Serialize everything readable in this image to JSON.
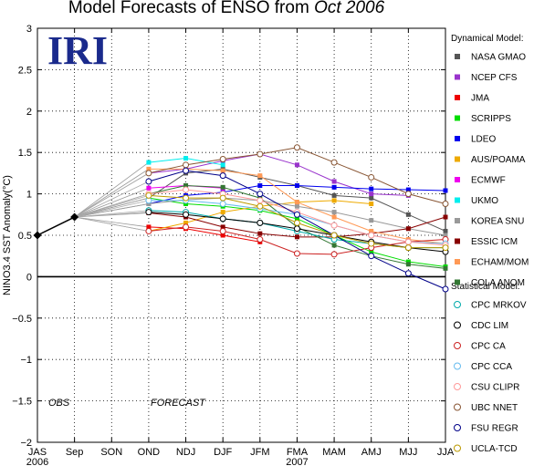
{
  "chart_data": {
    "type": "line",
    "title_prefix": "Model Forecasts of ENSO from",
    "title_date": "Oct 2006",
    "logo": "IRI",
    "ylabel": "NINO3.4 SST Anomaly(°C)",
    "ylim": [
      -2,
      3
    ],
    "yticks": [
      "3",
      "2.5",
      "2",
      "1.5",
      "1",
      "0.5",
      "0",
      "−0.5",
      "−1",
      "−1.5",
      "−2"
    ],
    "ytick_values": [
      3,
      2.5,
      2,
      1.5,
      1,
      0.5,
      0,
      -0.5,
      -1,
      -1.5,
      -2
    ],
    "categories": [
      "JAS",
      "Sep",
      "SON",
      "OND",
      "NDJ",
      "DJF",
      "JFM",
      "FMA",
      "MAM",
      "AMJ",
      "MJJ",
      "JJA"
    ],
    "year_labels": [
      {
        "label": "2006",
        "at": 0
      },
      {
        "label": "2007",
        "at": 7
      }
    ],
    "obs_label": "OBS",
    "forecast_label": "FORECAST",
    "observed": [
      0.5,
      0.72
    ],
    "legend_dynamical_title": "Dynamical Model:",
    "legend_statistical_title": "Statistical Model:",
    "series": [
      {
        "name": "NASA GMAO",
        "group": "dynamical",
        "color": "#555555",
        "values": [
          null,
          0.72,
          null,
          0.95,
          1.25,
          1.3,
          1.2,
          1.1,
          0.98,
          0.95,
          0.75,
          0.55
        ]
      },
      {
        "name": "NCEP CFS",
        "group": "dynamical",
        "color": "#9933cc",
        "values": [
          null,
          0.72,
          null,
          1.25,
          1.3,
          1.4,
          1.48,
          1.35,
          1.15,
          1.0,
          0.98,
          null
        ]
      },
      {
        "name": "JMA",
        "group": "dynamical",
        "color": "#ee0000",
        "values": [
          null,
          0.72,
          null,
          0.6,
          0.58,
          0.5,
          0.42,
          null,
          null,
          null,
          null,
          null
        ]
      },
      {
        "name": "SCRIPPS",
        "group": "dynamical",
        "color": "#00dd00",
        "values": [
          null,
          0.72,
          null,
          0.95,
          0.88,
          0.85,
          0.8,
          0.7,
          0.5,
          0.3,
          0.18,
          0.12
        ]
      },
      {
        "name": "LDEO",
        "group": "dynamical",
        "color": "#0000ee",
        "values": [
          null,
          0.72,
          null,
          0.88,
          0.98,
          1.02,
          1.1,
          1.1,
          1.08,
          1.06,
          1.05,
          1.04
        ]
      },
      {
        "name": "AUS/POAMA",
        "group": "dynamical",
        "color": "#eeaa00",
        "values": [
          null,
          0.72,
          null,
          0.55,
          0.65,
          0.78,
          0.85,
          0.9,
          0.92,
          0.88,
          null,
          null
        ]
      },
      {
        "name": "ECMWF",
        "group": "dynamical",
        "color": "#ee00ee",
        "values": [
          null,
          0.72,
          null,
          1.07,
          1.1,
          1.07,
          null,
          null,
          null,
          null,
          null,
          null
        ]
      },
      {
        "name": "UKMO",
        "group": "dynamical",
        "color": "#00eeee",
        "values": [
          null,
          0.72,
          null,
          1.38,
          1.43,
          1.35,
          null,
          null,
          null,
          null,
          null,
          null
        ]
      },
      {
        "name": "KOREA SNU",
        "group": "dynamical",
        "color": "#999999",
        "values": [
          null,
          0.72,
          null,
          0.88,
          0.93,
          0.95,
          0.92,
          0.85,
          0.78,
          0.68,
          0.58,
          0.5
        ]
      },
      {
        "name": "ESSIC ICM",
        "group": "dynamical",
        "color": "#880000",
        "values": [
          null,
          0.72,
          null,
          0.77,
          0.72,
          0.6,
          0.52,
          0.48,
          0.48,
          0.52,
          0.58,
          0.72
        ]
      },
      {
        "name": "ECHAM/MOM",
        "group": "dynamical",
        "color": "#ff9955",
        "values": [
          null,
          0.72,
          null,
          1.3,
          1.3,
          1.28,
          1.22,
          0.9,
          0.72,
          0.55,
          0.45,
          0.4
        ]
      },
      {
        "name": "COLA ANOM",
        "group": "dynamical",
        "color": "#337733",
        "values": [
          null,
          0.72,
          null,
          1.0,
          1.1,
          1.08,
          0.95,
          0.6,
          0.38,
          0.25,
          0.15,
          0.1
        ]
      },
      {
        "name": "CPC MRKOV",
        "group": "statistical",
        "color": "#00aaaa",
        "values": [
          null,
          0.72,
          null,
          0.8,
          0.78,
          0.7,
          0.65,
          0.55,
          0.45,
          0.4,
          0.35,
          0.35
        ]
      },
      {
        "name": "CDC LIM",
        "group": "statistical",
        "color": "#000000",
        "values": [
          null,
          0.72,
          null,
          0.78,
          0.75,
          0.7,
          0.65,
          0.58,
          0.5,
          0.42,
          0.35,
          0.3
        ]
      },
      {
        "name": "CPC CA",
        "group": "statistical",
        "color": "#cc2222",
        "values": [
          null,
          0.72,
          null,
          0.55,
          0.6,
          0.55,
          0.45,
          0.28,
          0.27,
          0.35,
          0.42,
          0.45
        ]
      },
      {
        "name": "CPC CCA",
        "group": "statistical",
        "color": "#66bbee",
        "values": [
          null,
          0.72,
          null,
          0.92,
          0.92,
          0.88,
          0.82,
          0.75,
          0.62,
          0.5,
          0.42,
          0.4
        ]
      },
      {
        "name": "CSU CLIPR",
        "group": "statistical",
        "color": "#ff9999",
        "values": [
          null,
          0.72,
          null,
          1.0,
          1.05,
          1.0,
          0.92,
          0.78,
          0.62,
          0.5,
          0.42,
          0.38
        ]
      },
      {
        "name": "UBC NNET",
        "group": "statistical",
        "color": "#885533",
        "values": [
          null,
          0.72,
          null,
          1.25,
          1.35,
          1.42,
          1.48,
          1.56,
          1.38,
          1.2,
          1.0,
          0.88
        ]
      },
      {
        "name": "FSU REGR",
        "group": "statistical",
        "color": "#000088",
        "values": [
          null,
          0.72,
          null,
          1.15,
          1.28,
          1.22,
          1.0,
          0.75,
          0.5,
          0.25,
          0.04,
          -0.15
        ]
      },
      {
        "name": "UCLA-TCD",
        "group": "statistical",
        "color": "#bb9900",
        "values": [
          null,
          0.72,
          null,
          0.98,
          0.95,
          0.95,
          0.85,
          0.65,
          0.5,
          0.4,
          0.35,
          0.35
        ]
      }
    ]
  }
}
